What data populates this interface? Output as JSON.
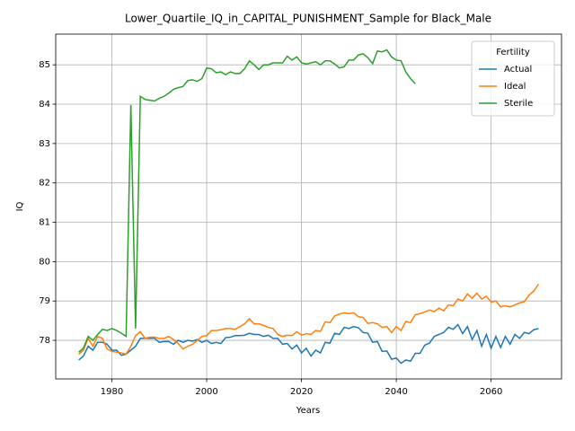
{
  "chart_data": {
    "type": "line",
    "title": "Lower_Quartile_IQ_in_CAPITAL_PUNISHMENT_Sample for Black_Male",
    "x_label": "Years",
    "y_label": "IQ",
    "x": [
      1973,
      1974,
      1975,
      1976,
      1977,
      1978,
      1979,
      1980,
      1981,
      1982,
      1983,
      1984,
      1985,
      1986,
      1987,
      1988,
      1989,
      1990,
      1991,
      1992,
      1993,
      1994,
      1995,
      1996,
      1997,
      1998,
      1999,
      2000,
      2001,
      2002,
      2003,
      2004,
      2005,
      2006,
      2007,
      2008,
      2009,
      2010,
      2011,
      2012,
      2013,
      2014,
      2015,
      2016,
      2017,
      2018,
      2019,
      2020,
      2021,
      2022,
      2023,
      2024,
      2025,
      2026,
      2027,
      2028,
      2029,
      2030,
      2031,
      2032,
      2033,
      2034,
      2035,
      2036,
      2037,
      2038,
      2039,
      2040,
      2041,
      2042,
      2043,
      2044,
      2045,
      2046,
      2047,
      2048,
      2049,
      2050,
      2051,
      2052,
      2053,
      2054,
      2055,
      2056,
      2057,
      2058,
      2059,
      2060,
      2061,
      2062,
      2063,
      2064,
      2065,
      2066,
      2067,
      2068,
      2069,
      2070
    ],
    "series": [
      {
        "name": "Actual",
        "color": "#1f77b4",
        "values": [
          77.5,
          77.6,
          77.85,
          77.75,
          77.95,
          77.95,
          77.9,
          77.75,
          77.75,
          77.62,
          77.65,
          77.75,
          77.85,
          78.05,
          78.05,
          78.05,
          78.05,
          77.95,
          77.97,
          77.97,
          77.9,
          78.0,
          77.95,
          78.0,
          77.98,
          78.02,
          77.95,
          78.0,
          77.92,
          77.95,
          77.92,
          78.07,
          78.08,
          78.12,
          78.12,
          78.13,
          78.18,
          78.15,
          78.15,
          78.1,
          78.13,
          78.05,
          78.05,
          77.9,
          77.92,
          77.78,
          77.88,
          77.68,
          77.8,
          77.6,
          77.75,
          77.68,
          77.95,
          77.93,
          78.18,
          78.15,
          78.33,
          78.3,
          78.35,
          78.32,
          78.2,
          78.18,
          77.95,
          77.97,
          77.72,
          77.73,
          77.52,
          77.55,
          77.42,
          77.5,
          77.47,
          77.67,
          77.67,
          77.88,
          77.93,
          78.1,
          78.15,
          78.2,
          78.33,
          78.28,
          78.4,
          78.17,
          78.35,
          78.02,
          78.25,
          77.85,
          78.15,
          77.8,
          78.1,
          77.82,
          78.1,
          77.9,
          78.15,
          78.05,
          78.2,
          78.17,
          78.27,
          78.3
        ]
      },
      {
        "name": "Ideal",
        "color": "#ff7f0e",
        "values": [
          77.65,
          77.75,
          78.05,
          77.85,
          78.1,
          78.05,
          77.78,
          77.72,
          77.7,
          77.68,
          77.65,
          77.85,
          78.12,
          78.22,
          78.05,
          78.08,
          78.08,
          78.05,
          78.05,
          78.1,
          78.02,
          77.92,
          77.78,
          77.85,
          77.9,
          78.0,
          78.1,
          78.12,
          78.25,
          78.25,
          78.27,
          78.3,
          78.3,
          78.28,
          78.35,
          78.42,
          78.55,
          78.42,
          78.42,
          78.38,
          78.33,
          78.3,
          78.15,
          78.1,
          78.13,
          78.12,
          78.22,
          78.13,
          78.17,
          78.15,
          78.25,
          78.23,
          78.47,
          78.45,
          78.62,
          78.67,
          78.7,
          78.68,
          78.7,
          78.6,
          78.58,
          78.43,
          78.45,
          78.42,
          78.33,
          78.35,
          78.2,
          78.35,
          78.25,
          78.48,
          78.45,
          78.65,
          78.68,
          78.72,
          78.77,
          78.73,
          78.82,
          78.75,
          78.9,
          78.88,
          79.05,
          79.0,
          79.18,
          79.07,
          79.2,
          79.05,
          79.12,
          78.97,
          79.0,
          78.85,
          78.88,
          78.85,
          78.9,
          78.95,
          78.98,
          79.15,
          79.25,
          79.43
        ]
      },
      {
        "name": "Sterile",
        "color": "#2ca02c",
        "values": [
          77.7,
          77.8,
          78.1,
          78.0,
          78.15,
          78.28,
          78.25,
          78.3,
          78.25,
          78.18,
          78.1,
          83.98,
          78.3,
          84.2,
          84.12,
          84.1,
          84.08,
          84.15,
          84.2,
          84.28,
          84.38,
          84.42,
          84.45,
          84.6,
          84.62,
          84.58,
          84.65,
          84.92,
          84.9,
          84.8,
          84.82,
          84.75,
          84.82,
          84.78,
          84.78,
          84.9,
          85.1,
          85.0,
          84.88,
          85.0,
          85.0,
          85.05,
          85.05,
          85.05,
          85.22,
          85.12,
          85.2,
          85.05,
          85.02,
          85.05,
          85.08,
          85.0,
          85.1,
          85.1,
          85.02,
          84.92,
          84.95,
          85.12,
          85.12,
          85.25,
          85.28,
          85.18,
          85.03,
          85.35,
          85.33,
          85.38,
          85.2,
          85.12,
          85.1,
          84.82,
          84.65,
          84.52,
          null,
          null,
          null,
          null,
          null,
          null,
          null,
          null,
          null,
          null,
          null,
          null,
          null,
          null,
          null,
          null,
          null,
          null,
          null,
          null,
          null,
          null,
          null,
          null,
          null,
          null
        ]
      }
    ],
    "xlim": [
      1968.15,
      2074.85
    ],
    "ylim": [
      77.02,
      85.78
    ],
    "xticks": [
      1980,
      2000,
      2020,
      2040,
      2060
    ],
    "yticks": [
      78,
      79,
      80,
      81,
      82,
      83,
      84,
      85
    ],
    "grid": true,
    "legend_title": "Fertility",
    "legend_loc": "upper right"
  }
}
